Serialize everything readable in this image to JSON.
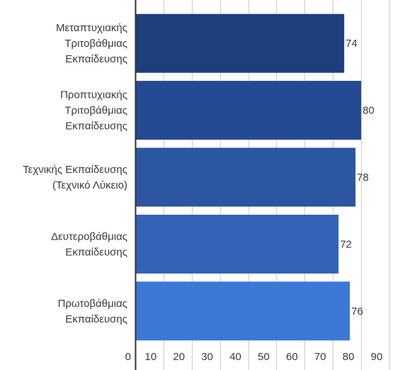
{
  "chart_data": {
    "type": "bar",
    "orientation": "horizontal",
    "title": "",
    "xlabel": "",
    "ylabel": "",
    "categories": [
      [
        "Μεταπτυχιακής",
        "Τριτοβάθμιας",
        "Εκπαίδευσης"
      ],
      [
        "Προπτυχιακής",
        "Τριτοβάθμιας",
        "Εκπαίδευσης"
      ],
      [
        "Τεχνικής Εκπαίδευσης",
        "(Τεχνικό Λύκειο)"
      ],
      [
        "Δευτεροβάθμιας",
        "Εκπαίδευσης"
      ],
      [
        "Πρωτοβάθμιας",
        "Εκπαίδευσης"
      ]
    ],
    "values": [
      74,
      80,
      78,
      72,
      76
    ],
    "data_labels": [
      "74",
      "80",
      "78",
      "72",
      "76"
    ],
    "bar_colors": [
      "#1f3f7c",
      "#244b91",
      "#2c56a2",
      "#3462b6",
      "#3c78d5"
    ],
    "xlim": [
      0,
      90
    ],
    "xticks": [
      "0",
      "10",
      "20",
      "30",
      "40",
      "50",
      "60",
      "70",
      "80",
      "90"
    ],
    "grid": true,
    "legend": "none"
  },
  "colors": {
    "gridline": "#cccccc",
    "axis": "#333333",
    "text": "#3a3a3a"
  }
}
